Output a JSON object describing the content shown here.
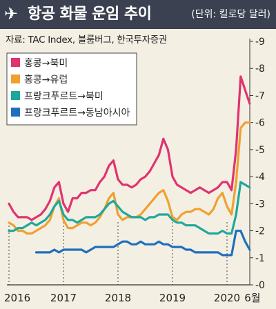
{
  "header": {
    "icon": "airplane-icon",
    "title": "항공 화물 운임 추이",
    "unit": "(단위: 킬로당 달러)"
  },
  "source": "자료: TAC Index, 블룸버그, 한국투자증권",
  "chart_data": {
    "type": "line",
    "x_ticks": [
      "2016",
      "2017",
      "2018",
      "2019",
      "2020",
      "6월"
    ],
    "y_ticks": [
      "9",
      "8",
      "7",
      "6",
      "5",
      "4",
      "3",
      "2",
      "1",
      "0"
    ],
    "ylim": [
      0,
      9
    ],
    "grid": false,
    "legend_position": "top-left",
    "series": [
      {
        "name": "홍콩→북미",
        "color": "#e0336f",
        "points": [
          [
            "2016-01",
            3.0
          ],
          [
            "2016-02",
            2.7
          ],
          [
            "2016-03",
            2.5
          ],
          [
            "2016-04",
            2.5
          ],
          [
            "2016-05",
            2.5
          ],
          [
            "2016-06",
            2.4
          ],
          [
            "2016-07",
            2.5
          ],
          [
            "2016-08",
            2.6
          ],
          [
            "2016-09",
            2.8
          ],
          [
            "2016-10",
            3.1
          ],
          [
            "2016-11",
            3.6
          ],
          [
            "2016-12",
            3.8
          ],
          [
            "2017-01",
            3.0
          ],
          [
            "2017-02",
            2.7
          ],
          [
            "2017-03",
            3.2
          ],
          [
            "2017-04",
            3.2
          ],
          [
            "2017-05",
            3.4
          ],
          [
            "2017-06",
            3.4
          ],
          [
            "2017-07",
            3.5
          ],
          [
            "2017-08",
            3.5
          ],
          [
            "2017-09",
            3.8
          ],
          [
            "2017-10",
            4.0
          ],
          [
            "2017-11",
            4.4
          ],
          [
            "2017-12",
            4.6
          ],
          [
            "2018-01",
            3.9
          ],
          [
            "2018-02",
            3.7
          ],
          [
            "2018-03",
            3.7
          ],
          [
            "2018-04",
            3.6
          ],
          [
            "2018-05",
            3.7
          ],
          [
            "2018-06",
            3.9
          ],
          [
            "2018-07",
            4.0
          ],
          [
            "2018-08",
            4.2
          ],
          [
            "2018-09",
            4.5
          ],
          [
            "2018-10",
            4.8
          ],
          [
            "2018-11",
            5.4
          ],
          [
            "2018-12",
            5.0
          ],
          [
            "2019-01",
            4.0
          ],
          [
            "2019-02",
            3.7
          ],
          [
            "2019-03",
            3.6
          ],
          [
            "2019-04",
            3.5
          ],
          [
            "2019-05",
            3.4
          ],
          [
            "2019-06",
            3.5
          ],
          [
            "2019-07",
            3.6
          ],
          [
            "2019-08",
            3.5
          ],
          [
            "2019-09",
            3.4
          ],
          [
            "2019-10",
            3.5
          ],
          [
            "2019-11",
            3.6
          ],
          [
            "2019-12",
            3.8
          ],
          [
            "2020-01",
            3.8
          ],
          [
            "2020-02",
            3.5
          ],
          [
            "2020-03",
            5.0
          ],
          [
            "2020-04",
            7.7
          ],
          [
            "2020-05",
            7.2
          ],
          [
            "2020-06",
            6.7
          ]
        ]
      },
      {
        "name": "홍콩→유럽",
        "color": "#f0a030",
        "points": [
          [
            "2016-01",
            2.3
          ],
          [
            "2016-02",
            2.2
          ],
          [
            "2016-03",
            2.0
          ],
          [
            "2016-04",
            2.0
          ],
          [
            "2016-05",
            1.9
          ],
          [
            "2016-06",
            1.9
          ],
          [
            "2016-07",
            2.0
          ],
          [
            "2016-08",
            2.1
          ],
          [
            "2016-09",
            2.2
          ],
          [
            "2016-10",
            2.4
          ],
          [
            "2016-11",
            2.9
          ],
          [
            "2016-12",
            3.2
          ],
          [
            "2017-01",
            2.4
          ],
          [
            "2017-02",
            2.1
          ],
          [
            "2017-03",
            2.1
          ],
          [
            "2017-04",
            2.2
          ],
          [
            "2017-05",
            2.3
          ],
          [
            "2017-06",
            2.3
          ],
          [
            "2017-07",
            2.2
          ],
          [
            "2017-08",
            2.3
          ],
          [
            "2017-09",
            2.5
          ],
          [
            "2017-10",
            2.8
          ],
          [
            "2017-11",
            3.2
          ],
          [
            "2017-12",
            3.4
          ],
          [
            "2018-01",
            2.6
          ],
          [
            "2018-02",
            2.4
          ],
          [
            "2018-03",
            2.5
          ],
          [
            "2018-04",
            2.5
          ],
          [
            "2018-05",
            2.5
          ],
          [
            "2018-06",
            2.6
          ],
          [
            "2018-07",
            2.8
          ],
          [
            "2018-08",
            3.0
          ],
          [
            "2018-09",
            3.2
          ],
          [
            "2018-10",
            3.4
          ],
          [
            "2018-11",
            3.5
          ],
          [
            "2018-12",
            3.1
          ],
          [
            "2019-01",
            2.5
          ],
          [
            "2019-02",
            2.4
          ],
          [
            "2019-03",
            2.6
          ],
          [
            "2019-04",
            2.7
          ],
          [
            "2019-05",
            2.7
          ],
          [
            "2019-06",
            2.8
          ],
          [
            "2019-07",
            2.8
          ],
          [
            "2019-08",
            2.7
          ],
          [
            "2019-09",
            2.6
          ],
          [
            "2019-10",
            2.8
          ],
          [
            "2019-11",
            3.2
          ],
          [
            "2019-12",
            3.4
          ],
          [
            "2020-01",
            2.9
          ],
          [
            "2020-02",
            2.6
          ],
          [
            "2020-03",
            3.8
          ],
          [
            "2020-04",
            5.8
          ],
          [
            "2020-05",
            6.0
          ],
          [
            "2020-06",
            6.0
          ]
        ]
      },
      {
        "name": "프랑크푸르트→북미",
        "color": "#1fa89a",
        "points": [
          [
            "2016-01",
            2.0
          ],
          [
            "2016-02",
            2.0
          ],
          [
            "2016-03",
            2.1
          ],
          [
            "2016-04",
            2.1
          ],
          [
            "2016-05",
            2.2
          ],
          [
            "2016-06",
            2.3
          ],
          [
            "2016-07",
            2.2
          ],
          [
            "2016-08",
            2.3
          ],
          [
            "2016-09",
            2.4
          ],
          [
            "2016-10",
            2.6
          ],
          [
            "2016-11",
            2.9
          ],
          [
            "2016-12",
            3.1
          ],
          [
            "2017-01",
            2.6
          ],
          [
            "2017-02",
            2.4
          ],
          [
            "2017-03",
            2.4
          ],
          [
            "2017-04",
            2.3
          ],
          [
            "2017-05",
            2.4
          ],
          [
            "2017-06",
            2.5
          ],
          [
            "2017-07",
            2.5
          ],
          [
            "2017-08",
            2.5
          ],
          [
            "2017-09",
            2.6
          ],
          [
            "2017-10",
            2.8
          ],
          [
            "2017-11",
            3.0
          ],
          [
            "2017-12",
            3.1
          ],
          [
            "2018-01",
            2.9
          ],
          [
            "2018-02",
            2.7
          ],
          [
            "2018-03",
            2.6
          ],
          [
            "2018-04",
            2.5
          ],
          [
            "2018-05",
            2.5
          ],
          [
            "2018-06",
            2.5
          ],
          [
            "2018-07",
            2.4
          ],
          [
            "2018-08",
            2.5
          ],
          [
            "2018-09",
            2.5
          ],
          [
            "2018-10",
            2.6
          ],
          [
            "2018-11",
            2.6
          ],
          [
            "2018-12",
            2.6
          ],
          [
            "2019-01",
            2.4
          ],
          [
            "2019-02",
            2.3
          ],
          [
            "2019-03",
            2.3
          ],
          [
            "2019-04",
            2.2
          ],
          [
            "2019-05",
            2.2
          ],
          [
            "2019-06",
            2.2
          ],
          [
            "2019-07",
            2.1
          ],
          [
            "2019-08",
            2.0
          ],
          [
            "2019-09",
            1.9
          ],
          [
            "2019-10",
            1.9
          ],
          [
            "2019-11",
            1.9
          ],
          [
            "2019-12",
            2.0
          ],
          [
            "2020-01",
            1.9
          ],
          [
            "2020-02",
            1.9
          ],
          [
            "2020-03",
            2.6
          ],
          [
            "2020-04",
            3.8
          ],
          [
            "2020-05",
            3.7
          ],
          [
            "2020-06",
            3.6
          ]
        ]
      },
      {
        "name": "프랑크푸르트→동남아시아",
        "color": "#1f6fbd",
        "points": [
          [
            "2016-07",
            1.2
          ],
          [
            "2016-08",
            1.2
          ],
          [
            "2016-09",
            1.2
          ],
          [
            "2016-10",
            1.2
          ],
          [
            "2016-11",
            1.3
          ],
          [
            "2016-12",
            1.2
          ],
          [
            "2017-01",
            1.3
          ],
          [
            "2017-02",
            1.3
          ],
          [
            "2017-03",
            1.3
          ],
          [
            "2017-04",
            1.3
          ],
          [
            "2017-05",
            1.3
          ],
          [
            "2017-06",
            1.2
          ],
          [
            "2017-07",
            1.3
          ],
          [
            "2017-08",
            1.4
          ],
          [
            "2017-09",
            1.4
          ],
          [
            "2017-10",
            1.4
          ],
          [
            "2017-11",
            1.4
          ],
          [
            "2017-12",
            1.4
          ],
          [
            "2018-01",
            1.5
          ],
          [
            "2018-02",
            1.6
          ],
          [
            "2018-03",
            1.6
          ],
          [
            "2018-04",
            1.5
          ],
          [
            "2018-05",
            1.5
          ],
          [
            "2018-06",
            1.6
          ],
          [
            "2018-07",
            1.5
          ],
          [
            "2018-08",
            1.5
          ],
          [
            "2018-09",
            1.5
          ],
          [
            "2018-10",
            1.6
          ],
          [
            "2018-11",
            1.5
          ],
          [
            "2018-12",
            1.5
          ],
          [
            "2019-01",
            1.4
          ],
          [
            "2019-02",
            1.4
          ],
          [
            "2019-03",
            1.4
          ],
          [
            "2019-04",
            1.3
          ],
          [
            "2019-05",
            1.3
          ],
          [
            "2019-06",
            1.2
          ],
          [
            "2019-07",
            1.2
          ],
          [
            "2019-08",
            1.2
          ],
          [
            "2019-09",
            1.2
          ],
          [
            "2019-10",
            1.2
          ],
          [
            "2019-11",
            1.2
          ],
          [
            "2019-12",
            1.1
          ],
          [
            "2020-01",
            1.1
          ],
          [
            "2020-02",
            1.1
          ],
          [
            "2020-03",
            2.0
          ],
          [
            "2020-04",
            2.0
          ],
          [
            "2020-05",
            1.6
          ],
          [
            "2020-06",
            1.3
          ]
        ]
      }
    ]
  }
}
